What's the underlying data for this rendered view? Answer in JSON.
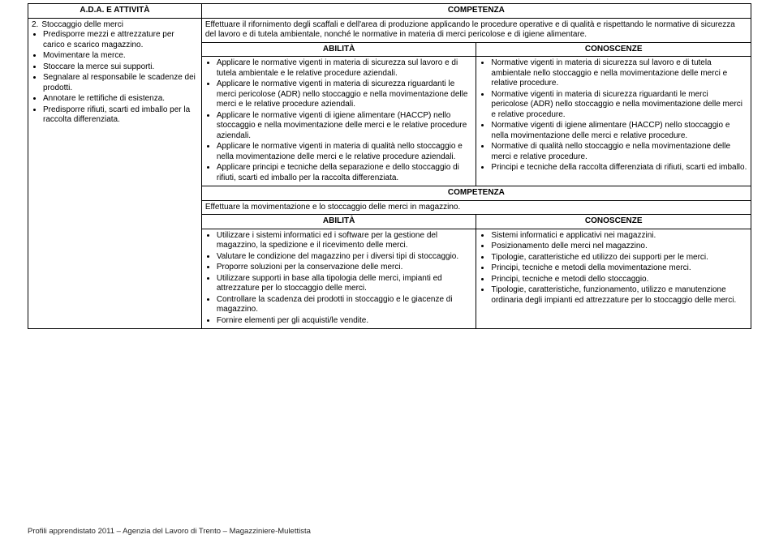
{
  "headers": {
    "ada": "A.D.A. E ATTIVITÀ",
    "competenza": "COMPETENZA",
    "abilita": "ABILITÀ",
    "conoscenze": "CONOSCENZE"
  },
  "left": {
    "num": "2.",
    "title": "Stoccaggio delle merci",
    "items": [
      "Predisporre mezzi e attrezzature per carico e scarico magazzino.",
      "Movimentare la merce.",
      "Stoccare la merce sui supporti.",
      "Segnalare al responsabile le scadenze dei prodotti.",
      "Annotare le rettifiche di esistenza.",
      "Predisporre rifiuti, scarti ed imballo per la raccolta differenziata."
    ]
  },
  "comp1": "Effettuare il rifornimento degli scaffali e dell'area di produzione applicando le procedure operative e di qualità e rispettando le normative di sicurezza del lavoro e di tutela ambientale, nonché le normative in materia di merci pericolose e di igiene alimentare.",
  "abilita1": [
    "Applicare le normative vigenti in materia di sicurezza sul lavoro e di tutela ambientale e le relative procedure aziendali.",
    "Applicare le normative vigenti in materia di sicurezza riguardanti le merci pericolose (ADR) nello stoccaggio e nella movimentazione delle merci e le relative procedure aziendali.",
    "Applicare le normative vigenti di igiene alimentare (HACCP) nello stoccaggio e nella movimentazione delle merci e le relative procedure aziendali.",
    "Applicare le normative vigenti in materia di qualità nello stoccaggio e nella movimentazione delle merci e le relative procedure aziendali.",
    "Applicare principi e tecniche della separazione e dello stoccaggio di rifiuti, scarti ed imballo per la raccolta differenziata."
  ],
  "conoscenze1": [
    "Normative vigenti in materia di sicurezza sul lavoro e di tutela ambientale nello stoccaggio e nella movimentazione delle merci e relative procedure.",
    "Normative vigenti in materia di sicurezza riguardanti le merci pericolose (ADR) nello stoccaggio e nella movimentazione delle merci e relative procedure.",
    "Normative vigenti di igiene alimentare (HACCP) nello stoccaggio e nella movimentazione delle merci e relative procedure.",
    "Normative di qualità nello stoccaggio e nella movimentazione delle merci e relative procedure.",
    "Principi e tecniche della raccolta differenziata di rifiuti, scarti ed imballo."
  ],
  "comp2": "Effettuare la movimentazione e lo stoccaggio delle merci in magazzino.",
  "abilita2": [
    "Utilizzare i sistemi informatici ed i software per la gestione del magazzino, la spedizione e il ricevimento delle merci.",
    "Valutare le condizione del magazzino per i diversi tipi di stoccaggio.",
    "Proporre soluzioni per la conservazione delle merci.",
    "Utilizzare supporti in base alla tipologia delle merci, impianti ed attrezzature per lo stoccaggio delle merci.",
    "Controllare la scadenza dei prodotti in stoccaggio e le giacenze di magazzino.",
    "Fornire elementi per gli acquisti/le vendite."
  ],
  "conoscenze2": [
    "Sistemi informatici e applicativi nei magazzini.",
    "Posizionamento delle merci nel magazzino.",
    "Tipologie, caratteristiche ed utilizzo dei supporti per le merci.",
    "Principi, tecniche e metodi della movimentazione merci.",
    "Principi, tecniche e metodi dello stoccaggio.",
    "Tipologie, caratteristiche, funzionamento, utilizzo e manutenzione ordinaria degli impianti ed attrezzature per lo stoccaggio delle merci."
  ],
  "footer": "Profili apprendistato  2011 – Agenzia del Lavoro di Trento – Magazziniere-Mulettista"
}
